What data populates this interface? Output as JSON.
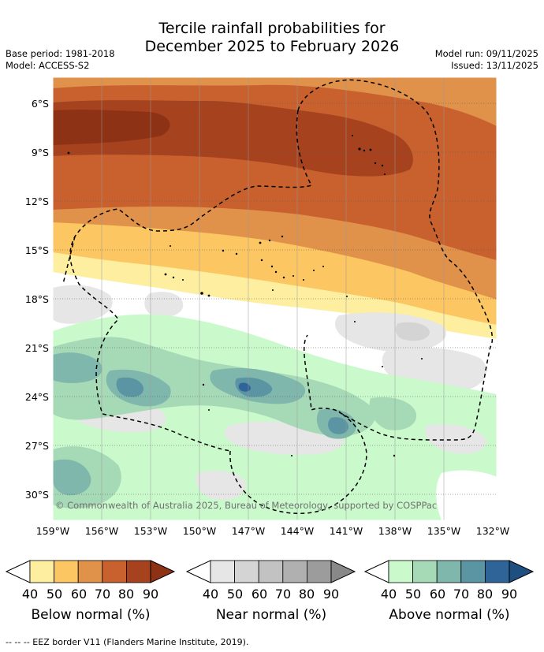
{
  "title": {
    "line1": "Tercile rainfall probabilities for",
    "line2": "December 2025 to February 2026"
  },
  "meta": {
    "base_period": "Base period: 1981-2018",
    "model": "Model: ACCESS-S2",
    "model_run": "Model run: 09/11/2025",
    "issued": "Issued: 13/11/2025"
  },
  "map": {
    "lat_labels": [
      "6°S",
      "9°S",
      "12°S",
      "15°S",
      "18°S",
      "21°S",
      "24°S",
      "27°S",
      "30°S"
    ],
    "lon_labels": [
      "159°W",
      "156°W",
      "153°W",
      "150°W",
      "147°W",
      "144°W",
      "141°W",
      "138°W",
      "135°W",
      "132°W"
    ],
    "copyright": "© Commonwealth of Australia 2025, Bureau of Meteorology, supported by COSPPac"
  },
  "colors": {
    "below": [
      "#fdeea0",
      "#fcc662",
      "#e0914a",
      "#c8612e",
      "#a6421e",
      "#8e3216"
    ],
    "near": [
      "#e6e6e6",
      "#d4d4d4",
      "#c2c2c2",
      "#b0b0b0",
      "#9c9c9c",
      "#888888"
    ],
    "above": [
      "#cafacc",
      "#a6d9b6",
      "#7fb7ad",
      "#5b95a3",
      "#2f6498",
      "#1f4e80"
    ]
  },
  "legends": [
    {
      "title": "Below normal (%)",
      "ticks": [
        "40",
        "50",
        "60",
        "70",
        "80",
        "90"
      ]
    },
    {
      "title": "Near normal (%)",
      "ticks": [
        "40",
        "50",
        "60",
        "70",
        "80",
        "90"
      ]
    },
    {
      "title": "Above normal (%)",
      "ticks": [
        "40",
        "50",
        "60",
        "70",
        "80",
        "90"
      ]
    }
  ],
  "footer": "--  --  -- EEZ border V11 (Flanders Marine Institute, 2019)."
}
